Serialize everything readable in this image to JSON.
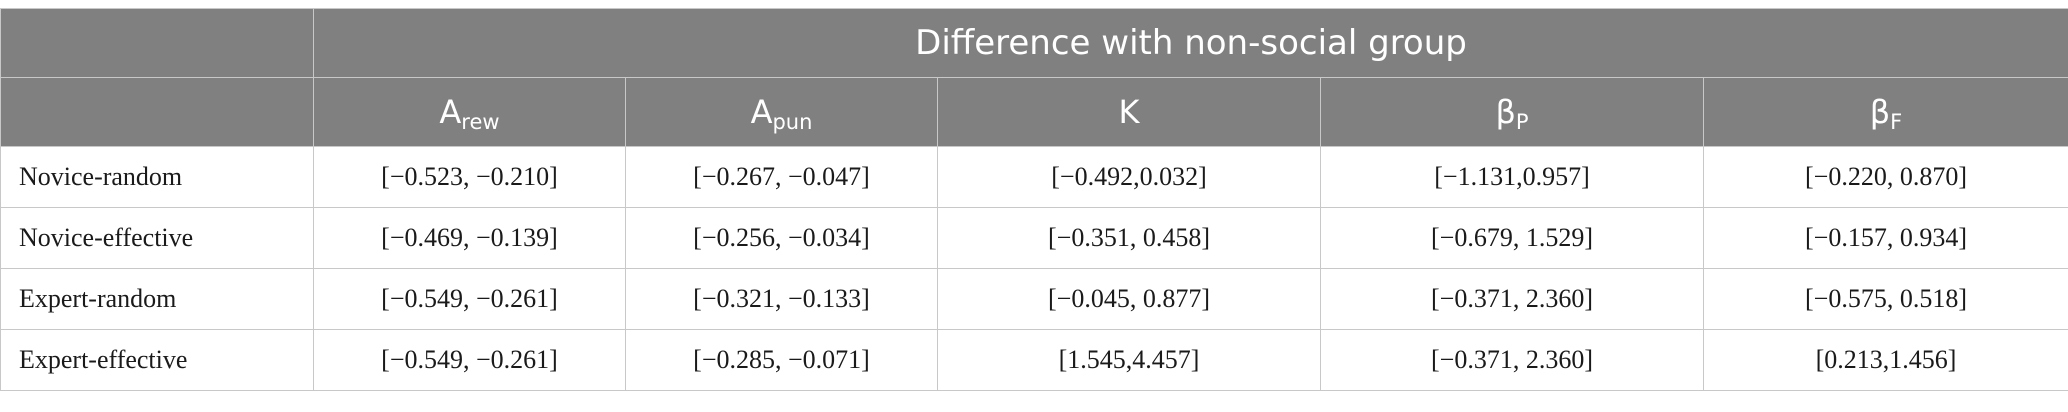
{
  "table": {
    "group_header": "Difference with non-social group",
    "columns": [
      {
        "symbol": "A",
        "sub": "rew"
      },
      {
        "symbol": "A",
        "sub": "pun"
      },
      {
        "symbol": "K",
        "sub": ""
      },
      {
        "symbol": "β",
        "sub": "P"
      },
      {
        "symbol": "β",
        "sub": "F"
      }
    ],
    "rows": [
      {
        "label": "Novice-random",
        "cells": [
          "[−0.523, −0.210]",
          "[−0.267, −0.047]",
          "[−0.492,0.032]",
          "[−1.131,0.957]",
          "[−0.220, 0.870]"
        ]
      },
      {
        "label": "Novice-effective",
        "cells": [
          "[−0.469, −0.139]",
          "[−0.256, −0.034]",
          "[−0.351, 0.458]",
          "[−0.679, 1.529]",
          "[−0.157, 0.934]"
        ]
      },
      {
        "label": "Expert-random",
        "cells": [
          "[−0.549, −0.261]",
          "[−0.321, −0.133]",
          "[−0.045, 0.877]",
          "[−0.371, 2.360]",
          "[−0.575, 0.518]"
        ]
      },
      {
        "label": "Expert-effective",
        "cells": [
          "[−0.549, −0.261]",
          "[−0.285, −0.071]",
          "[1.545,4.457]",
          "[−0.371, 2.360]",
          "[0.213,1.456]"
        ]
      }
    ]
  }
}
